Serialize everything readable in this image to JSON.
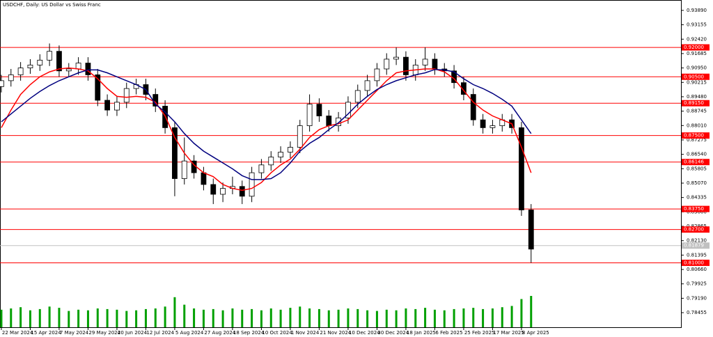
{
  "chart_data": {
    "type": "candlestick",
    "title": "USDCHF, Daily:  US Dollar vs Swiss Franc",
    "x": [
      0,
      5,
      10,
      15,
      20,
      25,
      30,
      35,
      40,
      45,
      50,
      55,
      60,
      65,
      70,
      75,
      80,
      85,
      90,
      95,
      100,
      105,
      110,
      115,
      120,
      125,
      130,
      135,
      140,
      145,
      150,
      155,
      160,
      165,
      170,
      175,
      180,
      185,
      190,
      195,
      200,
      205,
      210,
      215,
      220,
      225,
      230,
      235,
      240,
      245,
      250,
      255,
      260,
      265,
      270,
      275
    ],
    "open": [
      0.9,
      0.903,
      0.906,
      0.9095,
      0.911,
      0.9135,
      0.918,
      0.908,
      0.909,
      0.912,
      0.906,
      0.893,
      0.888,
      0.892,
      0.899,
      0.901,
      0.896,
      0.89,
      0.879,
      0.853,
      0.862,
      0.856,
      0.85,
      0.845,
      0.848,
      0.849,
      0.844,
      0.856,
      0.86,
      0.864,
      0.8665,
      0.869,
      0.88,
      0.891,
      0.885,
      0.88,
      0.884,
      0.892,
      0.898,
      0.903,
      0.909,
      0.914,
      0.915,
      0.906,
      0.911,
      0.914,
      0.909,
      0.908,
      0.902,
      0.896,
      0.883,
      0.879,
      0.88,
      0.883,
      0.879,
      0.837
    ],
    "high": [
      0.906,
      0.909,
      0.9125,
      0.914,
      0.9165,
      0.922,
      0.921,
      0.912,
      0.915,
      0.915,
      0.909,
      0.896,
      0.895,
      0.902,
      0.904,
      0.904,
      0.899,
      0.893,
      0.882,
      0.874,
      0.865,
      0.859,
      0.853,
      0.851,
      0.854,
      0.852,
      0.859,
      0.863,
      0.867,
      0.8695,
      0.872,
      0.883,
      0.896,
      0.894,
      0.888,
      0.887,
      0.895,
      0.901,
      0.906,
      0.912,
      0.917,
      0.92,
      0.918,
      0.914,
      0.92,
      0.917,
      0.912,
      0.911,
      0.905,
      0.899,
      0.886,
      0.883,
      0.886,
      0.886,
      0.882,
      0.84
    ],
    "low": [
      0.897,
      0.9,
      0.903,
      0.9065,
      0.908,
      0.9105,
      0.905,
      0.905,
      0.906,
      0.903,
      0.89,
      0.885,
      0.885,
      0.889,
      0.896,
      0.893,
      0.887,
      0.876,
      0.844,
      0.85,
      0.853,
      0.847,
      0.84,
      0.841,
      0.845,
      0.84,
      0.841,
      0.853,
      0.857,
      0.861,
      0.8635,
      0.866,
      0.877,
      0.882,
      0.877,
      0.877,
      0.881,
      0.889,
      0.895,
      0.9,
      0.906,
      0.911,
      0.903,
      0.903,
      0.908,
      0.906,
      0.905,
      0.899,
      0.893,
      0.88,
      0.876,
      0.876,
      0.877,
      0.876,
      0.834,
      0.81
    ],
    "close": [
      0.903,
      0.906,
      0.9095,
      0.911,
      0.9135,
      0.918,
      0.908,
      0.909,
      0.912,
      0.906,
      0.893,
      0.888,
      0.892,
      0.899,
      0.901,
      0.896,
      0.89,
      0.879,
      0.853,
      0.862,
      0.856,
      0.85,
      0.845,
      0.848,
      0.849,
      0.844,
      0.856,
      0.86,
      0.864,
      0.8665,
      0.869,
      0.88,
      0.891,
      0.885,
      0.88,
      0.884,
      0.892,
      0.898,
      0.903,
      0.909,
      0.914,
      0.915,
      0.906,
      0.911,
      0.914,
      0.909,
      0.908,
      0.902,
      0.896,
      0.883,
      0.879,
      0.88,
      0.883,
      0.879,
      0.837,
      0.817
    ],
    "series": [
      {
        "color": "#ff0000",
        "values": [
          0.879,
          0.888,
          0.896,
          0.901,
          0.905,
          0.9075,
          0.909,
          0.9095,
          0.909,
          0.908,
          0.904,
          0.899,
          0.895,
          0.8945,
          0.895,
          0.8945,
          0.892,
          0.885,
          0.874,
          0.866,
          0.86,
          0.856,
          0.854,
          0.85,
          0.848,
          0.847,
          0.848,
          0.851,
          0.856,
          0.86,
          0.863,
          0.868,
          0.874,
          0.878,
          0.88,
          0.881,
          0.883,
          0.888,
          0.893,
          0.898,
          0.903,
          0.907,
          0.908,
          0.9085,
          0.909,
          0.909,
          0.9075,
          0.904,
          0.898,
          0.892,
          0.888,
          0.885,
          0.883,
          0.881,
          0.869,
          0.856
        ]
      },
      {
        "color": "#00007f",
        "values": [
          0.882,
          0.886,
          0.89,
          0.894,
          0.8975,
          0.9005,
          0.903,
          0.905,
          0.907,
          0.9085,
          0.9085,
          0.907,
          0.905,
          0.903,
          0.901,
          0.8985,
          0.891,
          0.887,
          0.882,
          0.876,
          0.871,
          0.867,
          0.864,
          0.861,
          0.858,
          0.8545,
          0.8525,
          0.8525,
          0.853,
          0.856,
          0.861,
          0.867,
          0.871,
          0.874,
          0.878,
          0.8815,
          0.886,
          0.891,
          0.895,
          0.8985,
          0.901,
          0.903,
          0.9045,
          0.906,
          0.907,
          0.9087,
          0.9085,
          0.9075,
          0.904,
          0.901,
          0.899,
          0.8965,
          0.8935,
          0.89,
          0.883,
          0.876
        ]
      }
    ],
    "volume": {
      "color": "#00a000",
      "values": [
        28000,
        30000,
        32000,
        27000,
        29000,
        33000,
        31000,
        26000,
        28000,
        27000,
        30000,
        29000,
        28000,
        26000,
        27000,
        29000,
        30000,
        33000,
        48000,
        36000,
        30000,
        28000,
        29000,
        27000,
        30000,
        28000,
        29000,
        27000,
        30000,
        28000,
        31000,
        33000,
        30000,
        29000,
        27000,
        28000,
        30000,
        29000,
        27000,
        26000,
        28000,
        27000,
        30000,
        29000,
        31000,
        28000,
        27000,
        29000,
        30000,
        31000,
        29000,
        30000,
        32000,
        34000,
        45000,
        50000
      ]
    },
    "levels": [
      {
        "value": 0.92,
        "label": "0.92000",
        "color": "#ff0000"
      },
      {
        "value": 0.905,
        "label": "0.90500",
        "color": "#ff0000"
      },
      {
        "value": 0.8915,
        "label": "0.89150",
        "color": "#ff0000"
      },
      {
        "value": 0.875,
        "label": "0.87500",
        "color": "#ff0000"
      },
      {
        "value": 0.86146,
        "label": "0.86146",
        "color": "#ff0000"
      },
      {
        "value": 0.8375,
        "label": "0.83750",
        "color": "#ff0000"
      },
      {
        "value": 0.827,
        "label": "0.82700",
        "color": "#ff0000"
      },
      {
        "value": 0.81,
        "label": "0.81000",
        "color": "#ff0000"
      },
      {
        "value": 0.81879,
        "label": "0.81879",
        "color": "#c0c0c0"
      }
    ],
    "xlim": [
      -0.7,
      352.8
    ],
    "ylim": [
      0.7771,
      0.9442
    ],
    "yticks": [
      {
        "value": 0.9389,
        "label": "0.93890"
      },
      {
        "value": 0.93155,
        "label": "0.93155"
      },
      {
        "value": 0.9242,
        "label": "0.92420"
      },
      {
        "value": 0.91685,
        "label": "0.91685"
      },
      {
        "value": 0.9095,
        "label": "0.90950"
      },
      {
        "value": 0.90215,
        "label": "0.90215"
      },
      {
        "value": 0.8948,
        "label": "0.89480"
      },
      {
        "value": 0.88745,
        "label": "0.88745"
      },
      {
        "value": 0.8801,
        "label": "0.88010"
      },
      {
        "value": 0.87275,
        "label": "0.87275"
      },
      {
        "value": 0.8654,
        "label": "0.86540"
      },
      {
        "value": 0.85805,
        "label": "0.85805"
      },
      {
        "value": 0.8507,
        "label": "0.85070"
      },
      {
        "value": 0.84335,
        "label": "0.84335"
      },
      {
        "value": 0.836,
        "label": "0.83600"
      },
      {
        "value": 0.82865,
        "label": "0.82865"
      },
      {
        "value": 0.8213,
        "label": "0.82130"
      },
      {
        "value": 0.81395,
        "label": "0.81395"
      },
      {
        "value": 0.8066,
        "label": "0.80660"
      },
      {
        "value": 0.79925,
        "label": "0.79925"
      },
      {
        "value": 0.7919,
        "label": "0.79190"
      },
      {
        "value": 0.78455,
        "label": "0.78455"
      }
    ],
    "xticks": [
      {
        "value": 0,
        "label": "22 Mar 2024"
      },
      {
        "value": 15,
        "label": "15 Apr 2024"
      },
      {
        "value": 30,
        "label": "7 May 2024"
      },
      {
        "value": 45,
        "label": "29 May 2024"
      },
      {
        "value": 60,
        "label": "20 Jun 2024"
      },
      {
        "value": 75,
        "label": "12 Jul 2024"
      },
      {
        "value": 90,
        "label": "5 Aug 2024"
      },
      {
        "value": 105,
        "label": "27 Aug 2024"
      },
      {
        "value": 120,
        "label": "18 Sep 2024"
      },
      {
        "value": 135,
        "label": "10 Oct 2024"
      },
      {
        "value": 150,
        "label": "1 Nov 2024"
      },
      {
        "value": 165,
        "label": "21 Nov 2024"
      },
      {
        "value": 180,
        "label": "10 Dec 2024"
      },
      {
        "value": 195,
        "label": "30 Dec 2024"
      },
      {
        "value": 210,
        "label": "18 Jan 2025"
      },
      {
        "value": 225,
        "label": "6 Feb 2025"
      },
      {
        "value": 240,
        "label": "25 Feb 2025"
      },
      {
        "value": 255,
        "label": "17 Mar 2025"
      },
      {
        "value": 270,
        "label": "8 Apr 2025"
      }
    ]
  }
}
